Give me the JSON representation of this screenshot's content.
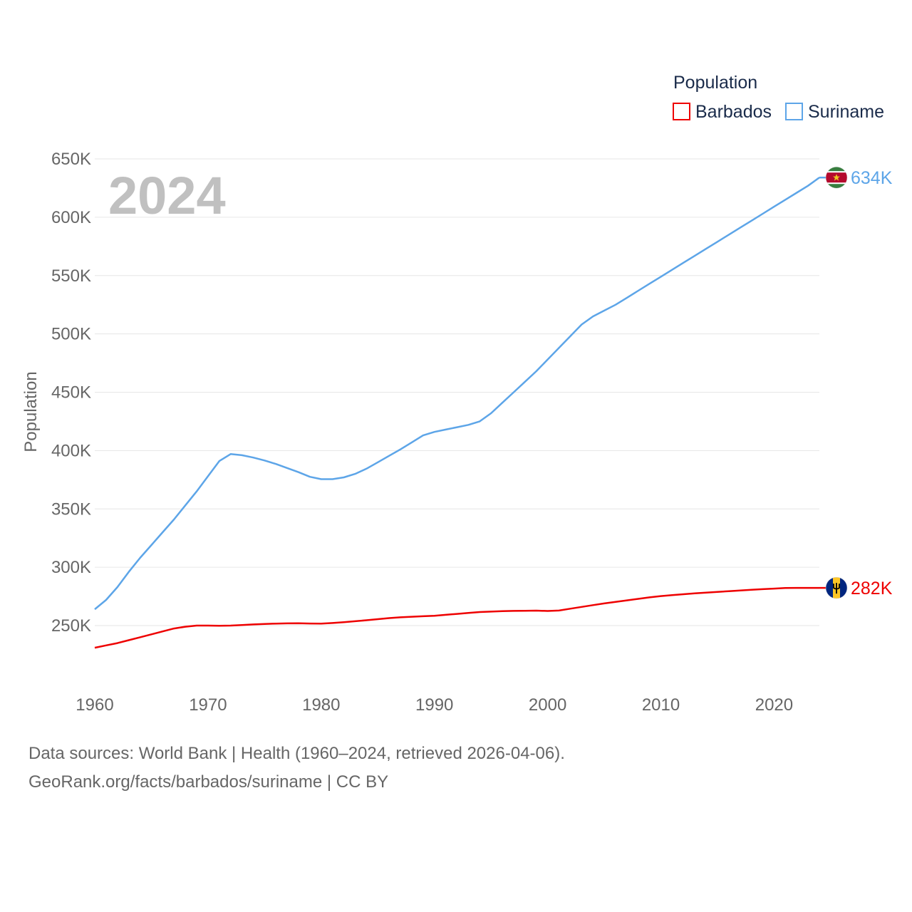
{
  "chart_data": {
    "type": "line",
    "year_label": "2024",
    "ylabel": "Population",
    "legend": {
      "title": "Population",
      "position": "top-right"
    },
    "ylim": [
      210000,
      650000
    ],
    "xlim": [
      1960,
      2024
    ],
    "y_ticks": [
      250000,
      300000,
      350000,
      400000,
      450000,
      500000,
      550000,
      600000,
      650000
    ],
    "y_tick_labels": [
      "250K",
      "300K",
      "350K",
      "400K",
      "450K",
      "500K",
      "550K",
      "600K",
      "650K"
    ],
    "x_ticks": [
      1960,
      1970,
      1980,
      1990,
      2000,
      2010,
      2020
    ],
    "x_tick_labels": [
      "1960",
      "1970",
      "1980",
      "1990",
      "2000",
      "2010",
      "2020"
    ],
    "grid": true,
    "series": [
      {
        "name": "Barbados",
        "color": "#ee0000",
        "end_label": "282K",
        "flag": "barbados-flag-icon",
        "x": [
          1960,
          1961,
          1962,
          1963,
          1964,
          1965,
          1966,
          1967,
          1968,
          1969,
          1970,
          1971,
          1972,
          1973,
          1974,
          1975,
          1976,
          1977,
          1978,
          1979,
          1980,
          1981,
          1982,
          1983,
          1984,
          1985,
          1986,
          1987,
          1988,
          1989,
          1990,
          1991,
          1992,
          1993,
          1994,
          1995,
          1996,
          1997,
          1998,
          1999,
          2000,
          2001,
          2002,
          2003,
          2004,
          2005,
          2006,
          2007,
          2008,
          2009,
          2010,
          2011,
          2012,
          2013,
          2014,
          2015,
          2016,
          2017,
          2018,
          2019,
          2020,
          2021,
          2022,
          2023,
          2024
        ],
        "values": [
          231000,
          233000,
          235000,
          237500,
          240000,
          242500,
          245000,
          247500,
          249000,
          250000,
          250000,
          249800,
          250000,
          250500,
          251000,
          251400,
          251700,
          251900,
          252000,
          251800,
          251700,
          252200,
          252900,
          253700,
          254600,
          255500,
          256400,
          257100,
          257600,
          258000,
          258400,
          259200,
          260000,
          260800,
          261600,
          262000,
          262400,
          262600,
          262700,
          262800,
          262500,
          262900,
          264500,
          266000,
          267500,
          269000,
          270300,
          271600,
          272900,
          274200,
          275300,
          276100,
          276900,
          277600,
          278300,
          278900,
          279500,
          280100,
          280700,
          281200,
          281700,
          282200,
          282300,
          282300,
          282300
        ]
      },
      {
        "name": "Suriname",
        "color": "#5da5e8",
        "end_label": "634K",
        "flag": "suriname-flag-icon",
        "x": [
          1960,
          1961,
          1962,
          1963,
          1964,
          1965,
          1966,
          1967,
          1968,
          1969,
          1970,
          1971,
          1972,
          1973,
          1974,
          1975,
          1976,
          1977,
          1978,
          1979,
          1980,
          1981,
          1982,
          1983,
          1984,
          1985,
          1986,
          1987,
          1988,
          1989,
          1990,
          1991,
          1992,
          1993,
          1994,
          1995,
          1996,
          1997,
          1998,
          1999,
          2000,
          2001,
          2002,
          2003,
          2004,
          2005,
          2006,
          2007,
          2008,
          2009,
          2010,
          2011,
          2012,
          2013,
          2014,
          2015,
          2016,
          2017,
          2018,
          2019,
          2020,
          2021,
          2022,
          2023,
          2024
        ],
        "values": [
          264000,
          272000,
          283000,
          296000,
          308000,
          319000,
          330000,
          341000,
          353000,
          365000,
          378000,
          391000,
          397000,
          396000,
          394000,
          391500,
          388500,
          385000,
          381500,
          377500,
          375500,
          375500,
          377000,
          380000,
          384500,
          390000,
          395500,
          401000,
          407000,
          413000,
          416000,
          418000,
          420000,
          422000,
          425000,
          432000,
          441000,
          450000,
          459000,
          468000,
          478000,
          488000,
          498000,
          508000,
          515000,
          520000,
          525000,
          531000,
          537000,
          543000,
          549000,
          555000,
          561000,
          567000,
          573000,
          579000,
          585000,
          591000,
          597000,
          603000,
          609000,
          615000,
          621000,
          627000,
          634000
        ]
      }
    ]
  },
  "footer": {
    "line1": "Data sources: World Bank | Health (1960–2024, retrieved 2026-04-06).",
    "line2": "GeoRank.org/facts/barbados/suriname | CC BY"
  }
}
